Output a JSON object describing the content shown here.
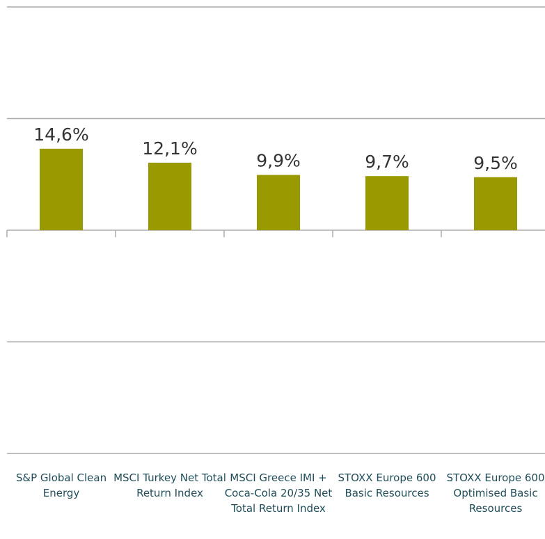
{
  "chart_data": {
    "type": "bar",
    "categories": [
      "S&P Global Clean Energy",
      "MSCI Turkey Net Total Return Index",
      "MSCI Greece IMI + Coca-Cola 20/35 Net Total Return Index",
      "STOXX Europe 600 Basic Resources",
      "STOXX Europe 600 Optimised Basic Resources"
    ],
    "values": [
      14.6,
      12.1,
      9.9,
      9.7,
      9.5
    ],
    "value_labels": [
      "14,6%",
      "12,1%",
      "9,9%",
      "9,7%",
      "9,5%"
    ],
    "color": "#999900",
    "ylim": [
      -40,
      40
    ],
    "yticks": [
      -40,
      -20,
      0,
      20,
      40
    ],
    "grid": true
  }
}
